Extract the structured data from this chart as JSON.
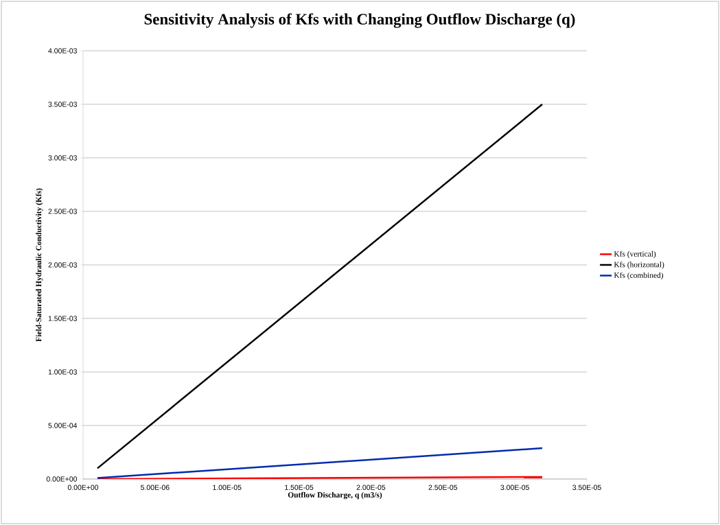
{
  "chart_data": {
    "type": "line",
    "title": "Sensitivity Analysis of Kfs with Changing Outflow Discharge (q)",
    "xlabel": "Outflow Discharge, q (m3/s)",
    "ylabel": "Field-Saturated Hydraulic Conductivity (Kfs)",
    "x": [
      1e-06,
      3.19e-05
    ],
    "series": [
      {
        "name": "Kfs (vertical)",
        "color": "#ff0000",
        "values": [
          0,
          2e-05
        ]
      },
      {
        "name": "Kfs (horizontal)",
        "color": "#000000",
        "values": [
          0.0001,
          0.0035
        ]
      },
      {
        "name": "Kfs (combined)",
        "color": "#002bad",
        "values": [
          1e-05,
          0.000288
        ]
      }
    ],
    "xlim": [
      0,
      3.5e-05
    ],
    "xticks": [
      {
        "value": 0,
        "label": "0.00E+00"
      },
      {
        "value": 5e-06,
        "label": "5.00E-06"
      },
      {
        "value": 1e-05,
        "label": "1.00E-05"
      },
      {
        "value": 1.5e-05,
        "label": "1.50E-05"
      },
      {
        "value": 2e-05,
        "label": "2.00E-05"
      },
      {
        "value": 2.5e-05,
        "label": "2.50E-05"
      },
      {
        "value": 3e-05,
        "label": "3.00E-05"
      },
      {
        "value": 3.5e-05,
        "label": "3.50E-05"
      }
    ],
    "ylim": [
      0,
      0.004
    ],
    "yticks": [
      {
        "value": 0,
        "label": "0.00E+00"
      },
      {
        "value": 0.0005,
        "label": "5.00E-04"
      },
      {
        "value": 0.001,
        "label": "1.00E-03"
      },
      {
        "value": 0.0015,
        "label": "1.50E-03"
      },
      {
        "value": 0.002,
        "label": "2.00E-03"
      },
      {
        "value": 0.0025,
        "label": "2.50E-03"
      },
      {
        "value": 0.003,
        "label": "3.00E-03"
      },
      {
        "value": 0.0035,
        "label": "3.50E-03"
      },
      {
        "value": 0.004,
        "label": "4.00E-03"
      }
    ],
    "grid": "y",
    "legend": "right",
    "marker": "none",
    "line_style": "solid"
  }
}
